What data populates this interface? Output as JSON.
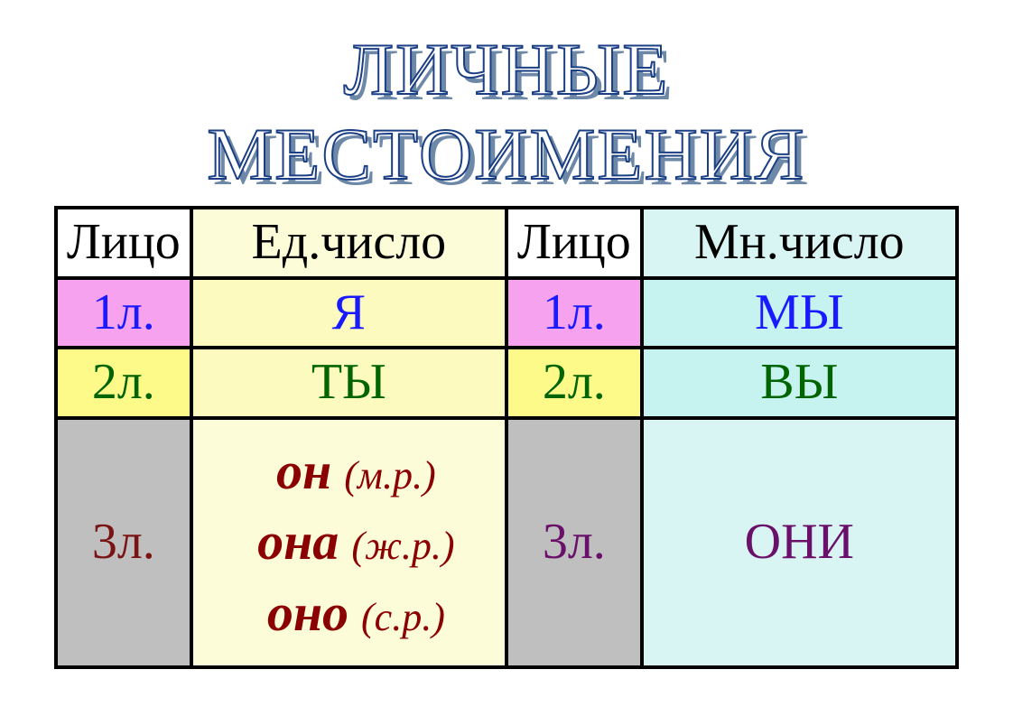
{
  "title": "ЛИЧНЫЕ МЕСТОИМЕНИЯ",
  "colors": {
    "title_outline": "#1b3f84",
    "title_shadow": "#6e88a8",
    "title_fill": "#ffffff",
    "border": "#000000",
    "sg_divider": "#c00000",
    "bg_header": "#ffffff",
    "bg_magenta": "#f7a2ef",
    "bg_cream": "#fcfabe",
    "bg_cream_light": "#fdfcd9",
    "bg_yellow": "#fdfa8a",
    "bg_cyan": "#c6f2f0",
    "bg_cyan_light": "#d9f5f3",
    "bg_gray": "#bfbfbf",
    "txt_black": "#000000",
    "txt_blue": "#1a1aff",
    "txt_green": "#006400",
    "txt_maroon": "#7a1414",
    "txt_darkred": "#8b0000",
    "txt_purple": "#6a0f6a"
  },
  "headers": {
    "person_left": "Лицо",
    "singular": "Ед.число",
    "person_right": "Лицо",
    "plural": "Мн.число"
  },
  "rows": {
    "r1": {
      "person": "1л.",
      "sg": "Я",
      "pl": "МЫ"
    },
    "r2": {
      "person": "2л.",
      "sg": "ТЫ",
      "pl": "ВЫ"
    },
    "r3": {
      "person": "3л.",
      "sg_lines": [
        {
          "pronoun": "он",
          "gender": "(м.р.)"
        },
        {
          "pronoun": "она",
          "gender": "(ж.р.)"
        },
        {
          "pronoun": "оно",
          "gender": "(с.р.)"
        }
      ],
      "pl": "ОНИ"
    }
  },
  "style": {
    "title_fontsize": 82,
    "cell_fontsize": 56,
    "third_pronoun_fontsize": 58,
    "third_gender_fontsize": 44,
    "border_width": 4,
    "font_family": "Times New Roman"
  }
}
